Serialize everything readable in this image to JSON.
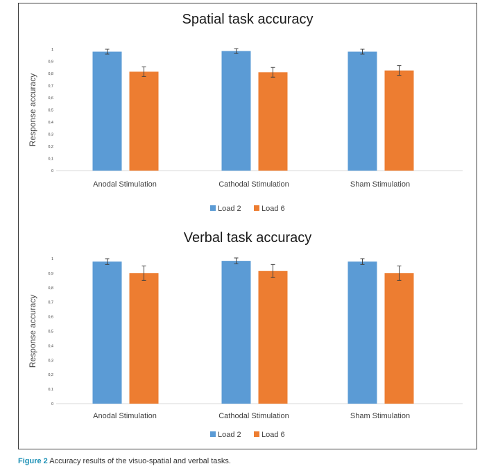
{
  "figure": {
    "caption_label": "Figure 2",
    "caption_text": " Accuracy results of the visuo-spatial and verbal tasks."
  },
  "colors": {
    "load2": "#5B9BD5",
    "load6": "#ED7D31",
    "axis": "#d9d9d9",
    "text": "#404040"
  },
  "chart_data": [
    {
      "type": "bar",
      "title": "Spatial task accuracy",
      "ylabel": "Response accuracy",
      "xlabel": "",
      "categories": [
        "Anodal Stimulation",
        "Cathodal Stimulation",
        "Sham Stimulation"
      ],
      "series": [
        {
          "name": "Load 2",
          "values": [
            0.98,
            0.985,
            0.98
          ],
          "errors": [
            0.02,
            0.02,
            0.02
          ]
        },
        {
          "name": "Load 6",
          "values": [
            0.815,
            0.81,
            0.825
          ],
          "errors": [
            0.04,
            0.04,
            0.04
          ]
        }
      ],
      "ylim": [
        0,
        1
      ],
      "yticks": [
        0,
        0.1,
        0.2,
        0.3,
        0.4,
        0.5,
        0.6,
        0.7,
        0.8,
        0.9,
        1
      ],
      "ytick_labels": [
        "0",
        "0,1",
        "0,2",
        "0,3",
        "0,4",
        "0,5",
        "0,6",
        "0,7",
        "0,8",
        "0,9",
        "1"
      ],
      "grid": false,
      "legend": "bottom"
    },
    {
      "type": "bar",
      "title": "Verbal task accuracy",
      "ylabel": "Response accuracy",
      "xlabel": "",
      "categories": [
        "Anodal Stimulation",
        "Cathodal Stimulation",
        "Sham Stimulation"
      ],
      "series": [
        {
          "name": "Load 2",
          "values": [
            0.98,
            0.985,
            0.98
          ],
          "errors": [
            0.02,
            0.02,
            0.02
          ]
        },
        {
          "name": "Load 6",
          "values": [
            0.9,
            0.915,
            0.9
          ],
          "errors": [
            0.05,
            0.045,
            0.05
          ]
        }
      ],
      "ylim": [
        0,
        1
      ],
      "yticks": [
        0,
        0.1,
        0.2,
        0.3,
        0.4,
        0.5,
        0.6,
        0.7,
        0.8,
        0.9,
        1
      ],
      "ytick_labels": [
        "0",
        "0,1",
        "0,2",
        "0,3",
        "0,4",
        "0,5",
        "0,6",
        "0,7",
        "0,8",
        "0,9",
        "1"
      ],
      "grid": false,
      "legend": "bottom"
    }
  ]
}
